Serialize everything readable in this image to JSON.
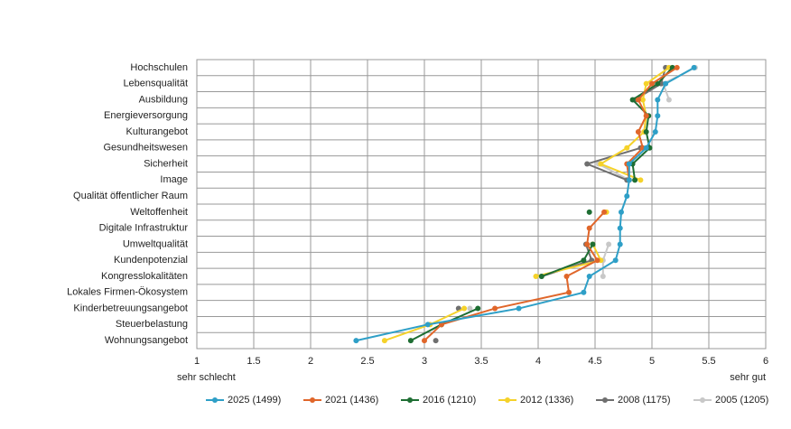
{
  "chart_data": {
    "type": "line",
    "orientation": "horizontal",
    "categories": [
      "Hochschulen",
      "Lebensqualität",
      "Ausbildung",
      "Energieversorgung",
      "Kulturangebot",
      "Gesundheitswesen",
      "Sicherheit",
      "Image",
      "Qualität öffentlicher Raum",
      "Weltoffenheit",
      "Digitale Infrastruktur",
      "Umweltqualität",
      "Kundenpotenzial",
      "Kongresslokalitäten",
      "Lokales Firmen-Ökosystem",
      "Kinderbetreuungsangebot",
      "Steuerbelastung",
      "Wohnungsangebot"
    ],
    "xlim": [
      1,
      6
    ],
    "xticks": [
      1,
      1.5,
      2,
      2.5,
      3,
      3.5,
      4,
      4.5,
      5,
      5.5,
      6
    ],
    "grid": true,
    "scale_low_label": "sehr schlecht",
    "scale_high_label": "sehr gut",
    "legend": "bottom",
    "series": [
      {
        "name": "2025 (1499)",
        "color": "#2e9fc7",
        "values": [
          5.37,
          5.12,
          5.05,
          5.05,
          5.03,
          4.95,
          4.8,
          4.8,
          4.78,
          4.73,
          4.72,
          4.72,
          4.68,
          4.45,
          4.4,
          3.83,
          3.03,
          2.4
        ]
      },
      {
        "name": "2021 (1436)",
        "color": "#e0662a",
        "values": [
          5.22,
          5.0,
          4.88,
          4.95,
          4.88,
          4.92,
          4.78,
          4.8,
          null,
          4.58,
          4.45,
          4.43,
          4.52,
          4.25,
          4.27,
          3.62,
          3.15,
          3.0
        ]
      },
      {
        "name": "2016 (1210)",
        "color": "#1e6e33",
        "values": [
          5.18,
          5.05,
          4.83,
          4.97,
          4.95,
          4.98,
          4.83,
          4.85,
          null,
          4.45,
          null,
          4.48,
          4.4,
          4.03,
          null,
          3.47,
          3.15,
          2.88
        ]
      },
      {
        "name": "2012 (1336)",
        "color": "#f5d22a",
        "values": [
          5.15,
          4.95,
          4.92,
          4.95,
          4.93,
          4.78,
          4.55,
          4.9,
          null,
          4.6,
          null,
          4.48,
          4.55,
          3.98,
          null,
          3.35,
          3.05,
          2.65
        ]
      },
      {
        "name": "2008 (1175)",
        "color": "#6f6f6f",
        "values": [
          5.12,
          5.08,
          4.85,
          null,
          null,
          4.9,
          4.43,
          4.78,
          null,
          null,
          null,
          4.42,
          4.47,
          4.03,
          null,
          3.3,
          null,
          3.1
        ]
      },
      {
        "name": "2005 (1205)",
        "color": "#c8c8c8",
        "values": [
          5.38,
          5.1,
          5.15,
          null,
          null,
          null,
          4.53,
          4.8,
          null,
          null,
          null,
          4.62,
          4.57,
          4.57,
          null,
          3.4,
          null,
          null
        ]
      }
    ]
  }
}
